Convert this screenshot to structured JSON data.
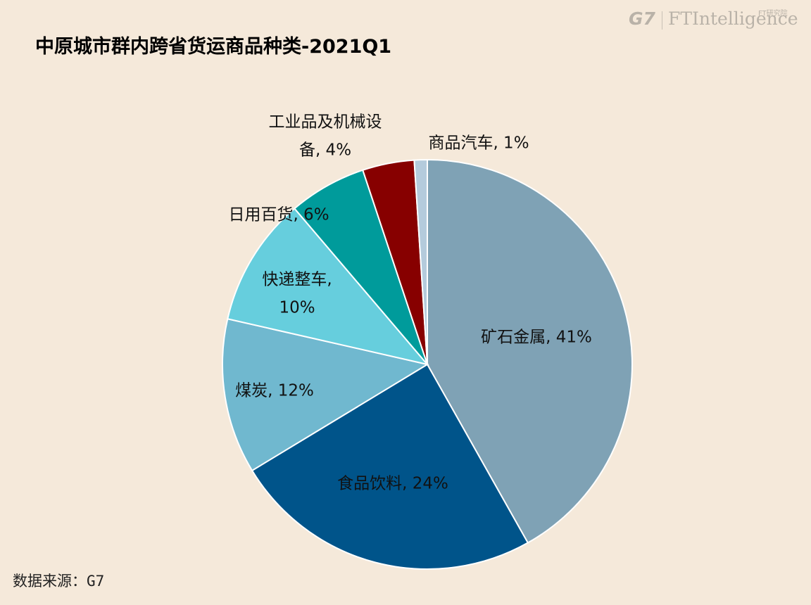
{
  "title": "中原城市群内跨省货运商品种类-2021Q1",
  "source": "数据来源：G7",
  "logo": {
    "g7": "G7",
    "ft": "FTIntelligence",
    "ft_small": "FT研究院"
  },
  "chart_data": {
    "type": "pie",
    "title": "中原城市群内跨省货运商品种类-2021Q1",
    "legend": "none",
    "slices": [
      {
        "name": "矿石金属",
        "value": 41,
        "color": "#7fa2b5",
        "label_lines": [
          "矿石金属, 41%"
        ]
      },
      {
        "name": "食品饮料",
        "value": 24,
        "color": "#00548a",
        "label_lines": [
          "食品饮料, 24%"
        ]
      },
      {
        "name": "煤炭",
        "value": 12,
        "color": "#70b8cf",
        "label_lines": [
          "煤炭, 12%"
        ]
      },
      {
        "name": "快递整车",
        "value": 10,
        "color": "#66cedd",
        "label_lines": [
          "快递整车,",
          "10%"
        ]
      },
      {
        "name": "日用百货",
        "value": 6,
        "color": "#009b9b",
        "label_lines": [
          "日用百货, 6%"
        ]
      },
      {
        "name": "工业品及机械设备",
        "value": 4,
        "color": "#870000",
        "label_lines": [
          "工业品及机械设",
          "备, 4%"
        ]
      },
      {
        "name": "商品汽车",
        "value": 1,
        "color": "#b4cbdc",
        "label_lines": [
          "商品汽车, 1%"
        ]
      }
    ]
  }
}
